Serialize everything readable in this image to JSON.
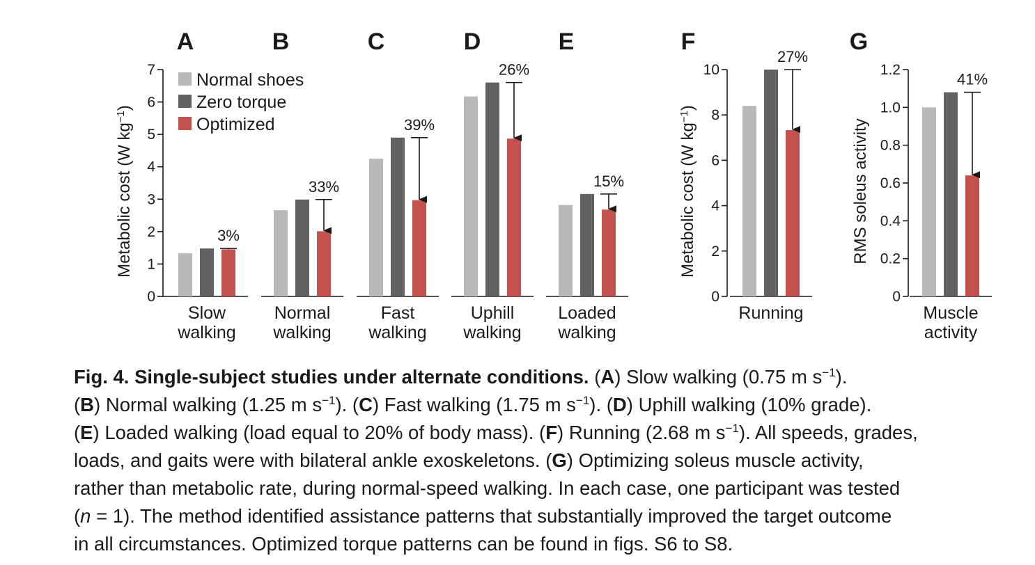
{
  "colors": {
    "normal_shoes": "#b9b9b9",
    "zero_torque": "#616163",
    "optimized": "#c4504d",
    "axis": "#1a1a1a"
  },
  "legend": {
    "items": [
      {
        "label": "Normal shoes",
        "color": "#b9b9b9"
      },
      {
        "label": "Zero torque",
        "color": "#616163"
      },
      {
        "label": "Optimized",
        "color": "#c4504d"
      }
    ],
    "placement": "top-left of panel A"
  },
  "chart_data": [
    {
      "type": "bar",
      "panel": "A",
      "ylabel": "Metabolic cost (W kg−1)",
      "ylim": [
        0,
        7
      ],
      "yticks": [
        "0",
        "1",
        "2",
        "3",
        "4",
        "5",
        "6",
        "7"
      ],
      "categories": [
        "Slow walking"
      ],
      "category_lines": [
        "Slow",
        "walking"
      ],
      "series": [
        {
          "name": "Normal shoes",
          "values": [
            1.33
          ]
        },
        {
          "name": "Zero torque",
          "values": [
            1.48
          ]
        },
        {
          "name": "Optimized",
          "values": [
            1.45
          ]
        }
      ],
      "reduction_label": "3%"
    },
    {
      "type": "bar",
      "panel": "B",
      "ylim": [
        0,
        7
      ],
      "categories": [
        "Normal walking"
      ],
      "category_lines": [
        "Normal",
        "walking"
      ],
      "series": [
        {
          "name": "Normal shoes",
          "values": [
            2.66
          ]
        },
        {
          "name": "Zero torque",
          "values": [
            2.99
          ]
        },
        {
          "name": "Optimized",
          "values": [
            2.01
          ]
        }
      ],
      "reduction_label": "33%"
    },
    {
      "type": "bar",
      "panel": "C",
      "ylim": [
        0,
        7
      ],
      "categories": [
        "Fast walking"
      ],
      "category_lines": [
        "Fast",
        "walking"
      ],
      "series": [
        {
          "name": "Normal shoes",
          "values": [
            4.25
          ]
        },
        {
          "name": "Zero torque",
          "values": [
            4.9
          ]
        },
        {
          "name": "Optimized",
          "values": [
            2.97
          ]
        }
      ],
      "reduction_label": "39%"
    },
    {
      "type": "bar",
      "panel": "D",
      "ylim": [
        0,
        7
      ],
      "categories": [
        "Uphill walking"
      ],
      "category_lines": [
        "Uphill",
        "walking"
      ],
      "series": [
        {
          "name": "Normal shoes",
          "values": [
            6.17
          ]
        },
        {
          "name": "Zero torque",
          "values": [
            6.6
          ]
        },
        {
          "name": "Optimized",
          "values": [
            4.87
          ]
        }
      ],
      "reduction_label": "26%"
    },
    {
      "type": "bar",
      "panel": "E",
      "ylim": [
        0,
        7
      ],
      "categories": [
        "Loaded walking"
      ],
      "category_lines": [
        "Loaded",
        "walking"
      ],
      "series": [
        {
          "name": "Normal shoes",
          "values": [
            2.82
          ]
        },
        {
          "name": "Zero torque",
          "values": [
            3.16
          ]
        },
        {
          "name": "Optimized",
          "values": [
            2.68
          ]
        }
      ],
      "reduction_label": "15%"
    },
    {
      "type": "bar",
      "panel": "F",
      "ylabel": "Metabolic cost (W kg−1)",
      "ylim": [
        0,
        10
      ],
      "yticks": [
        "0",
        "2",
        "4",
        "6",
        "8",
        "10"
      ],
      "categories": [
        "Running"
      ],
      "category_lines": [
        "Running"
      ],
      "series": [
        {
          "name": "Normal shoes",
          "values": [
            8.4
          ]
        },
        {
          "name": "Zero torque",
          "values": [
            10.0
          ]
        },
        {
          "name": "Optimized",
          "values": [
            7.33
          ]
        }
      ],
      "reduction_label": "27%"
    },
    {
      "type": "bar",
      "panel": "G",
      "ylabel": "RMS soleus activity",
      "ylim": [
        0,
        1.2
      ],
      "yticks": [
        "0",
        "0.2",
        "0.4",
        "0.6",
        "0.8",
        "1.0",
        "1.2"
      ],
      "categories": [
        "Muscle activity"
      ],
      "category_lines": [
        "Muscle",
        "activity"
      ],
      "series": [
        {
          "name": "Normal shoes",
          "values": [
            1.0
          ]
        },
        {
          "name": "Zero torque",
          "values": [
            1.08
          ]
        },
        {
          "name": "Optimized",
          "values": [
            0.64
          ]
        }
      ],
      "reduction_label": "41%"
    }
  ],
  "caption": {
    "lead": "Fig. 4. Single-subject studies under alternate conditions.",
    "s_A": "Slow walking (0.75 m s",
    "s_A_end": ").",
    "s_B": "Normal walking (1.25 m s",
    "s_B_end": ").",
    "s_C": "Fast walking (1.75 m s",
    "s_C_end": ").",
    "s_D": "Uphill walking (10% grade).",
    "s_E": "Loaded walking (load equal to 20% of body mass).",
    "s_F": "Running (2.68 m s",
    "s_F_end": "). All speeds, grades,",
    "line4_start": "loads, and gaits were with bilateral ankle exoskeletons.",
    "s_G": "Optimizing soleus muscle activity,",
    "line5": "rather than metabolic rate, during normal-speed walking. In each case, one participant was tested",
    "n_open": "(",
    "n_var": "n",
    "n_rest": " = 1). The method identified assistance patterns that substantially improved the target outcome",
    "line7": "in all circumstances. Optimized torque patterns can be found in figs. S6 to S8.",
    "exponent": "−1"
  }
}
